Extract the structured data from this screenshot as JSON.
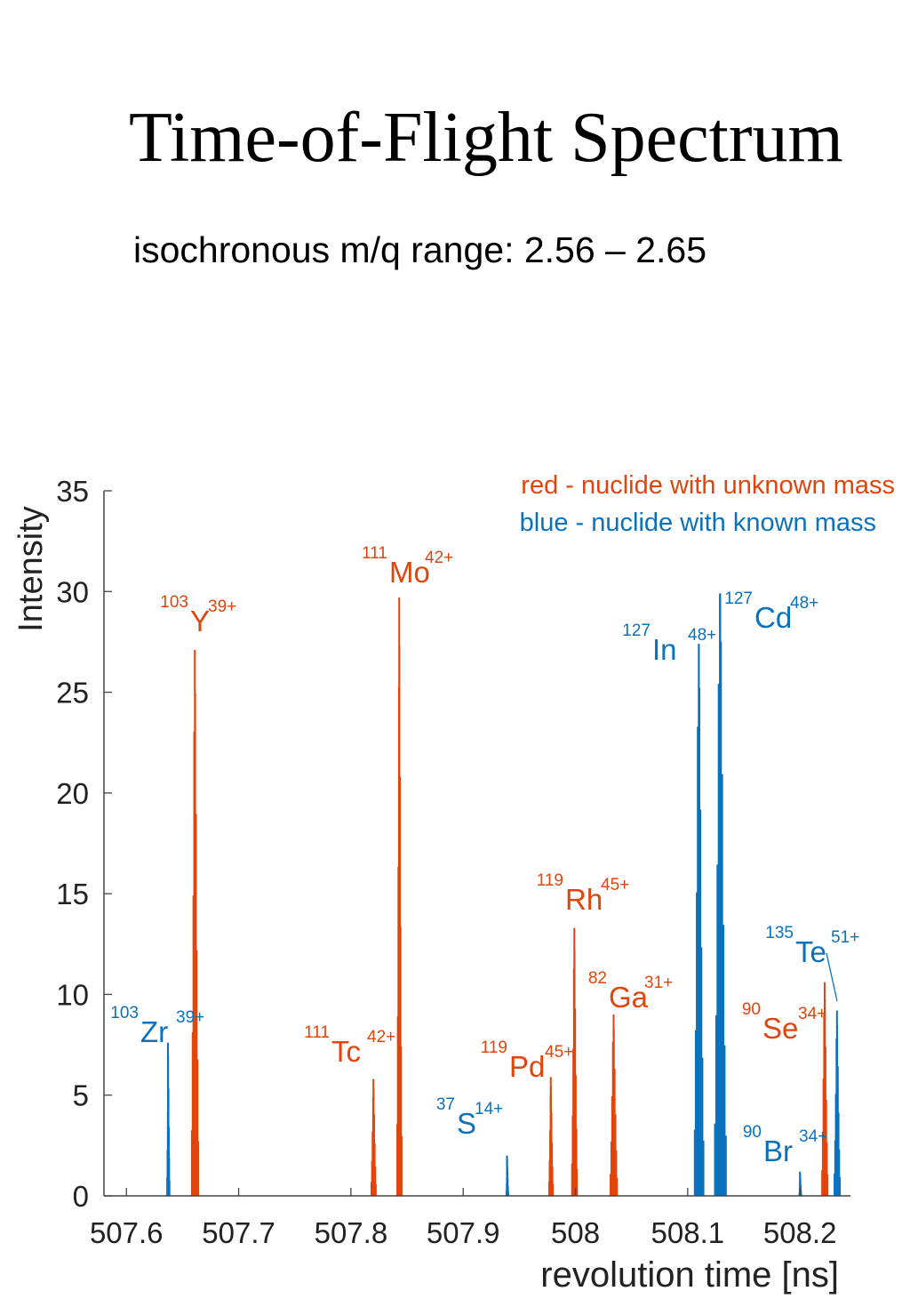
{
  "header": {
    "title": "Time-of-Flight Spectrum",
    "subtitle": "isochronous m/q range: 2.56 – 2.65"
  },
  "chart_data": {
    "type": "bar",
    "xlabel": "revolution time [ns]",
    "ylabel": "Intensity",
    "xlim": [
      507.58,
      508.245
    ],
    "ylim": [
      0,
      35
    ],
    "xticks": [
      507.6,
      507.7,
      507.8,
      507.9,
      508,
      508.1,
      508.2
    ],
    "xtick_labels": [
      "507.6",
      "507.7",
      "507.8",
      "507.9",
      "508",
      "508.1",
      "508.2"
    ],
    "yticks": [
      0,
      5,
      10,
      15,
      20,
      25,
      30,
      35
    ],
    "ytick_labels": [
      "0",
      "5",
      "10",
      "15",
      "20",
      "25",
      "30",
      "35"
    ],
    "grid": false,
    "legend": {
      "placement": "top-right",
      "entries": [
        {
          "text": "red - nuclide with unknown mass",
          "color": "#e2450c"
        },
        {
          "text": "blue - nuclide with known mass",
          "color": "#0a72bd"
        }
      ]
    },
    "colors": {
      "unknown": "#e2450c",
      "known": "#0a72bd"
    },
    "peaks": [
      {
        "nuclide": "Zr",
        "mass": "103",
        "charge": "39+",
        "known": true,
        "time": 507.637,
        "height": 7.6,
        "halfwidth": 0.0015
      },
      {
        "nuclide": "Y",
        "mass": "103",
        "charge": "39+",
        "known": false,
        "time": 507.661,
        "height": 27.1,
        "halfwidth": 0.0035
      },
      {
        "nuclide": "Tc",
        "mass": "111",
        "charge": "42+",
        "known": false,
        "time": 507.82,
        "height": 5.8,
        "halfwidth": 0.0025
      },
      {
        "nuclide": "Mo",
        "mass": "111",
        "charge": "42+",
        "known": false,
        "time": 507.843,
        "height": 29.7,
        "halfwidth": 0.0025
      },
      {
        "nuclide": "S",
        "mass": "37",
        "charge": "14+",
        "known": true,
        "time": 507.939,
        "height": 2.0,
        "halfwidth": 0.0012
      },
      {
        "nuclide": "Pd",
        "mass": "119",
        "charge": "45+",
        "known": false,
        "time": 507.978,
        "height": 5.9,
        "halfwidth": 0.0022
      },
      {
        "nuclide": "Rh",
        "mass": "119",
        "charge": "45+",
        "known": false,
        "time": 507.999,
        "height": 13.3,
        "halfwidth": 0.0028
      },
      {
        "nuclide": "Ga",
        "mass": "82",
        "charge": "31+",
        "known": false,
        "time": 508.034,
        "height": 9.0,
        "halfwidth": 0.0035
      },
      {
        "nuclide": "In",
        "mass": "127",
        "charge": "48+",
        "known": true,
        "time": 508.11,
        "height": 27.4,
        "halfwidth": 0.0045
      },
      {
        "nuclide": "Cd",
        "mass": "127",
        "charge": "48+",
        "known": true,
        "time": 508.129,
        "height": 29.9,
        "halfwidth": 0.0055
      },
      {
        "nuclide": "Br",
        "mass": "90",
        "charge": "34+",
        "known": true,
        "time": 508.2,
        "height": 1.2,
        "halfwidth": 0.0012
      },
      {
        "nuclide": "Se",
        "mass": "90",
        "charge": "34+",
        "known": false,
        "time": 508.222,
        "height": 10.6,
        "halfwidth": 0.003
      },
      {
        "nuclide": "Te",
        "mass": "135",
        "charge": "51+",
        "known": true,
        "time": 508.233,
        "height": 9.2,
        "halfwidth": 0.003
      }
    ]
  }
}
